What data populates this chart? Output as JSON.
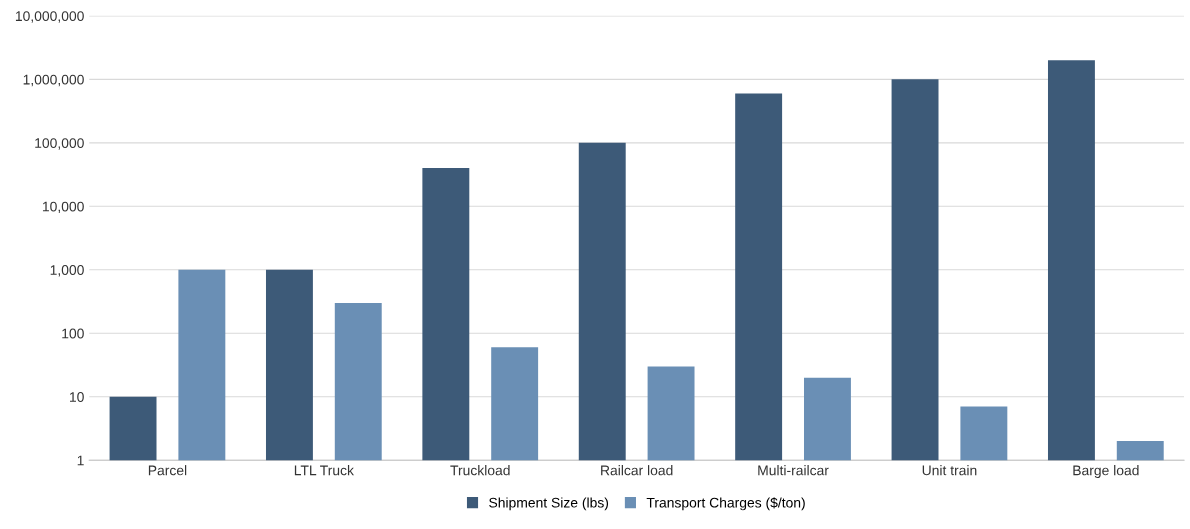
{
  "chart_data": {
    "type": "bar",
    "categories": [
      "Parcel",
      "LTL Truck",
      "Truckload",
      "Railcar load",
      "Multi-railcar",
      "Unit train",
      "Barge load"
    ],
    "series": [
      {
        "name": "Shipment Size (lbs)",
        "color": "#3d5a78",
        "values": [
          10,
          1000,
          40000,
          100000,
          600000,
          1000000,
          2000000
        ]
      },
      {
        "name": "Transport Charges ($/ton)",
        "color": "#6a8fb5",
        "values": [
          1000,
          300,
          60,
          30,
          20,
          7,
          2
        ]
      }
    ],
    "log": true,
    "ylim": [
      1,
      10000000
    ],
    "yticks": [
      {
        "value": 1,
        "label": "1"
      },
      {
        "value": 10,
        "label": "10"
      },
      {
        "value": 100,
        "label": "100"
      },
      {
        "value": 1000,
        "label": "1,000"
      },
      {
        "value": 10000,
        "label": "10,000"
      },
      {
        "value": 100000,
        "label": "100,000"
      },
      {
        "value": 1000000,
        "label": "1,000,000"
      },
      {
        "value": 10000000,
        "label": "10,000,000"
      }
    ],
    "grid": "y",
    "legend": "bottom"
  }
}
